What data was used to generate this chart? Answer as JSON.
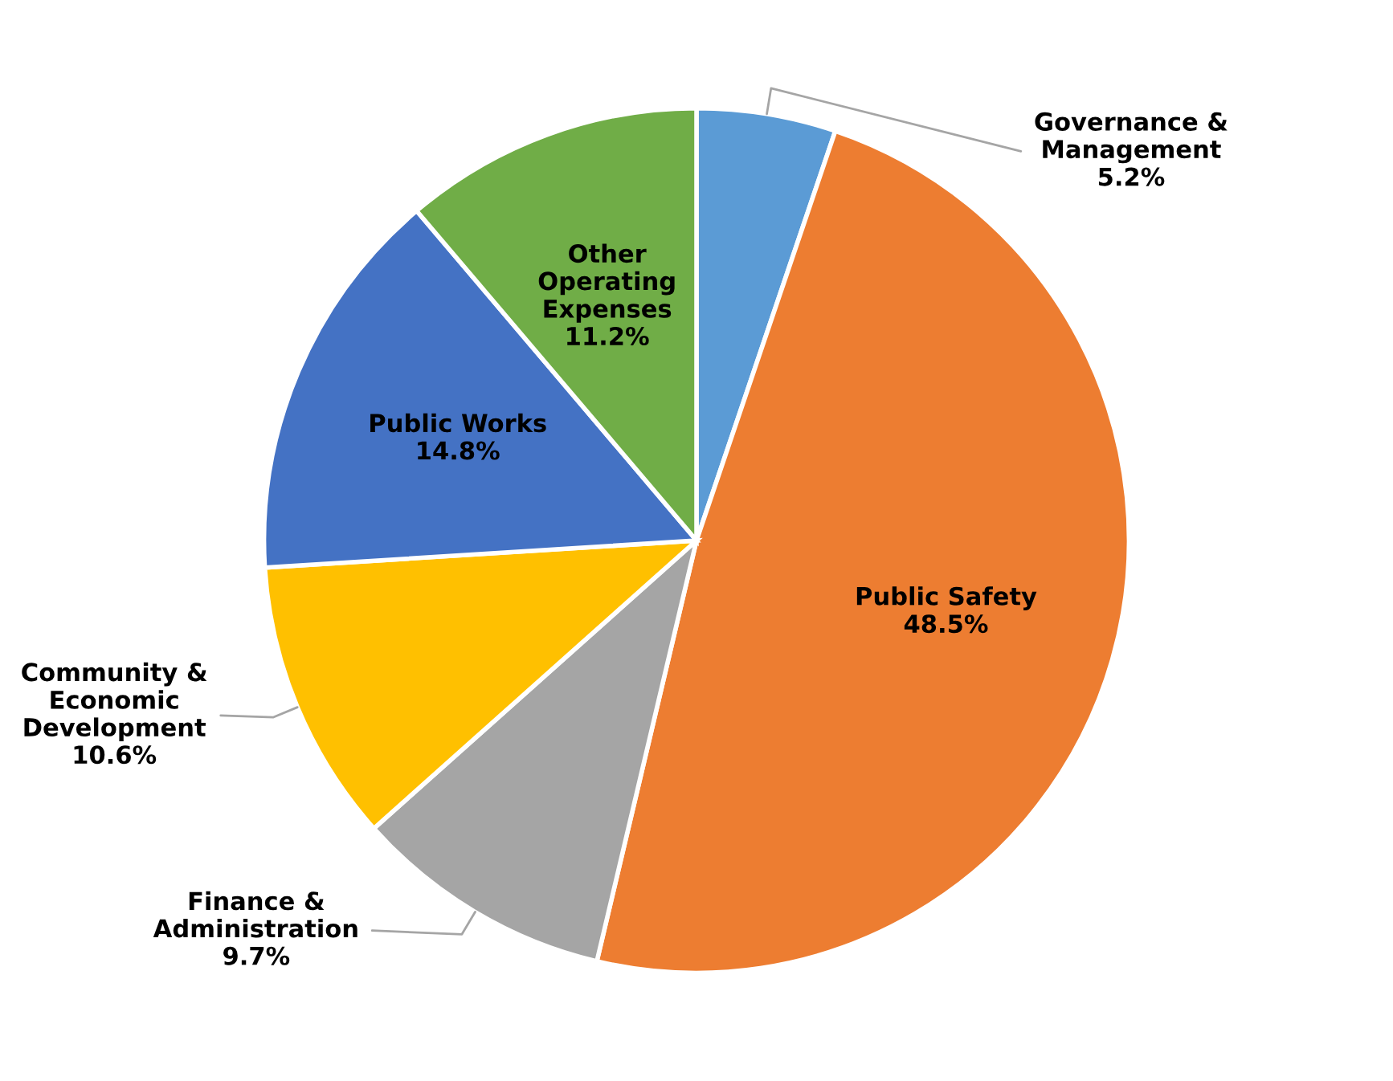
{
  "chart_data": {
    "type": "pie",
    "categories": [
      "Governance &\nManagement",
      "Public Safety",
      "Finance &\nAdministration",
      "Community &\nEconomic\nDevelopment",
      "Public Works",
      "Other\nOperating\nExpenses"
    ],
    "values": [
      5.2,
      48.5,
      9.7,
      10.6,
      14.8,
      11.2
    ],
    "value_labels": [
      "5.2%",
      "48.5%",
      "9.7%",
      "10.6%",
      "14.8%",
      "11.2%"
    ],
    "colors": [
      "#5b9bd5",
      "#ed7d31",
      "#a5a5a5",
      "#ffc000",
      "#4472c4",
      "#70ad47"
    ],
    "legend": false
  }
}
